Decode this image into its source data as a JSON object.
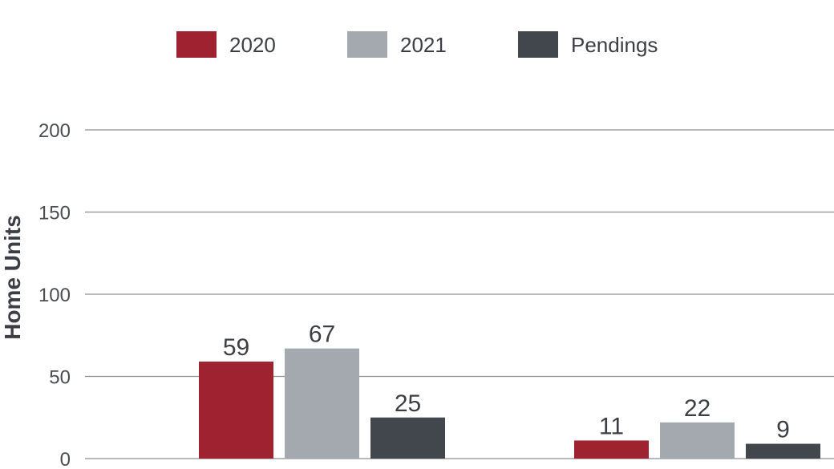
{
  "chart_data": {
    "type": "bar",
    "categories": [
      "",
      ""
    ],
    "series": [
      {
        "name": "2020",
        "values": [
          59,
          11
        ],
        "color": "#9e2230"
      },
      {
        "name": "2021",
        "values": [
          67,
          22
        ],
        "color": "#a3a9ae"
      },
      {
        "name": "Pendings",
        "values": [
          25,
          9
        ],
        "color": "#41474d"
      }
    ],
    "title": "",
    "xlabel": "",
    "ylabel": "Home Units",
    "ylim": [
      0,
      200
    ],
    "yticks": [
      "0",
      "50",
      "100",
      "150",
      "200"
    ],
    "grid": true,
    "legend_position": "top-center"
  }
}
